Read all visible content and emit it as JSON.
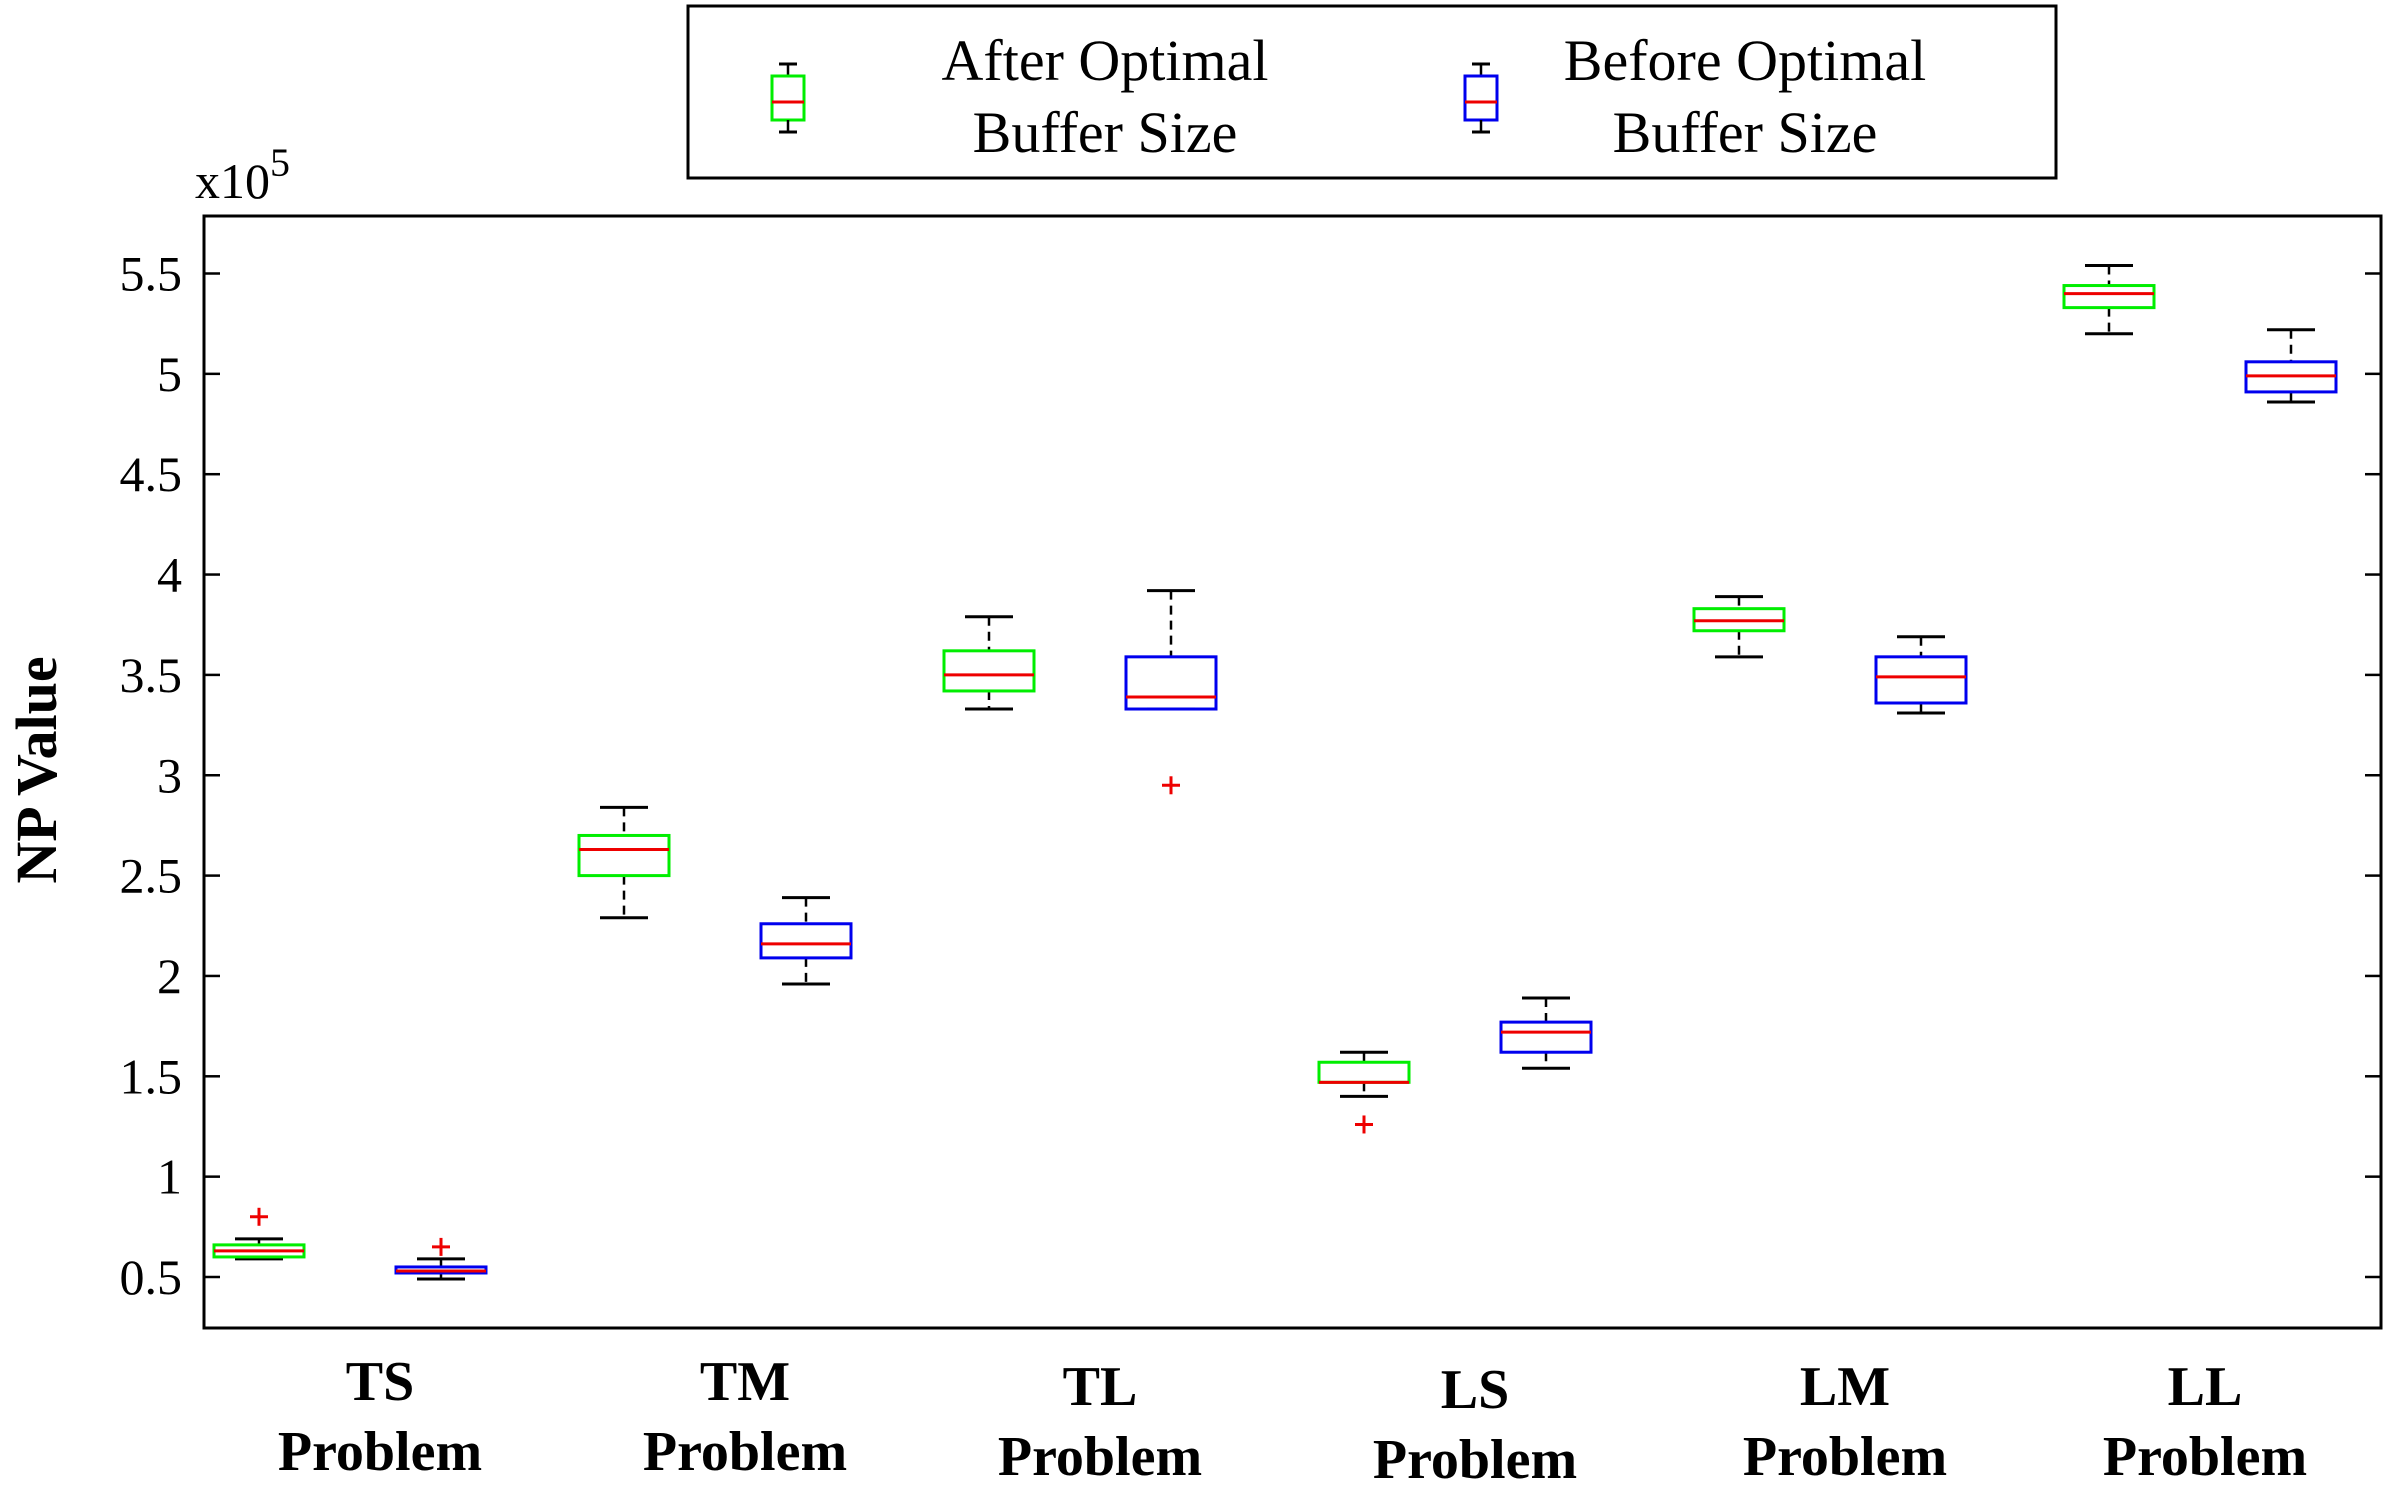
{
  "chart_data": {
    "type": "boxplot",
    "ylabel": "NP Value",
    "yscale_label": "x10",
    "yscale_exponent": "5",
    "ylim": [
      0.28,
      5.78
    ],
    "yticks": [
      0.5,
      1,
      1.5,
      2,
      2.5,
      3,
      3.5,
      4,
      4.5,
      5,
      5.5
    ],
    "ytick_labels": [
      "0.5",
      "1",
      "1.5",
      "2",
      "2.5",
      "3",
      "3.5",
      "4",
      "4.5",
      "5",
      "5.5"
    ],
    "categories": [
      {
        "line1": "TS",
        "line2": "Problem"
      },
      {
        "line1": "TM",
        "line2": "Problem"
      },
      {
        "line1": "TL",
        "line2": "Problem"
      },
      {
        "line1": "LS",
        "line2": "Problem"
      },
      {
        "line1": "LM",
        "line2": "Problem"
      },
      {
        "line1": "LL",
        "line2": "Problem"
      }
    ],
    "legend": {
      "position": "top-center",
      "entries": [
        {
          "line1": "After Optimal",
          "line2": "Buffer Size",
          "color": "#00ee00"
        },
        {
          "line1": "Before Optimal",
          "line2": "Buffer Size",
          "color": "#0000ee"
        }
      ]
    },
    "median_color": "#ee0000",
    "outlier_color": "#ee0000",
    "series": [
      {
        "name": "After Optimal Buffer Size",
        "color": "#00ee00",
        "boxes": [
          {
            "whisker_low": 0.59,
            "q1": 0.6,
            "median": 0.63,
            "q3": 0.66,
            "whisker_high": 0.69,
            "outliers": [
              0.8
            ]
          },
          {
            "whisker_low": 2.29,
            "q1": 2.5,
            "median": 2.63,
            "q3": 2.7,
            "whisker_high": 2.84,
            "outliers": []
          },
          {
            "whisker_low": 3.33,
            "q1": 3.42,
            "median": 3.5,
            "q3": 3.62,
            "whisker_high": 3.79,
            "outliers": []
          },
          {
            "whisker_low": 1.4,
            "q1": 1.47,
            "median": 1.47,
            "q3": 1.57,
            "whisker_high": 1.62,
            "outliers": [
              1.26
            ]
          },
          {
            "whisker_low": 3.59,
            "q1": 3.72,
            "median": 3.77,
            "q3": 3.83,
            "whisker_high": 3.89,
            "outliers": []
          },
          {
            "whisker_low": 5.2,
            "q1": 5.33,
            "median": 5.4,
            "q3": 5.44,
            "whisker_high": 5.54,
            "outliers": []
          }
        ]
      },
      {
        "name": "Before Optimal Buffer Size",
        "color": "#0000ee",
        "boxes": [
          {
            "whisker_low": 0.49,
            "q1": 0.52,
            "median": 0.53,
            "q3": 0.55,
            "whisker_high": 0.59,
            "outliers": [
              0.65
            ]
          },
          {
            "whisker_low": 1.96,
            "q1": 2.09,
            "median": 2.16,
            "q3": 2.26,
            "whisker_high": 2.39,
            "outliers": []
          },
          {
            "whisker_low": 3.33,
            "q1": 3.33,
            "median": 3.39,
            "q3": 3.59,
            "whisker_high": 3.92,
            "outliers": [
              2.95
            ]
          },
          {
            "whisker_low": 1.54,
            "q1": 1.62,
            "median": 1.72,
            "q3": 1.77,
            "whisker_high": 1.89,
            "outliers": []
          },
          {
            "whisker_low": 3.31,
            "q1": 3.36,
            "median": 3.49,
            "q3": 3.59,
            "whisker_high": 3.69,
            "outliers": []
          },
          {
            "whisker_low": 4.86,
            "q1": 4.91,
            "median": 4.99,
            "q3": 5.06,
            "whisker_high": 5.22,
            "outliers": []
          }
        ]
      }
    ]
  }
}
